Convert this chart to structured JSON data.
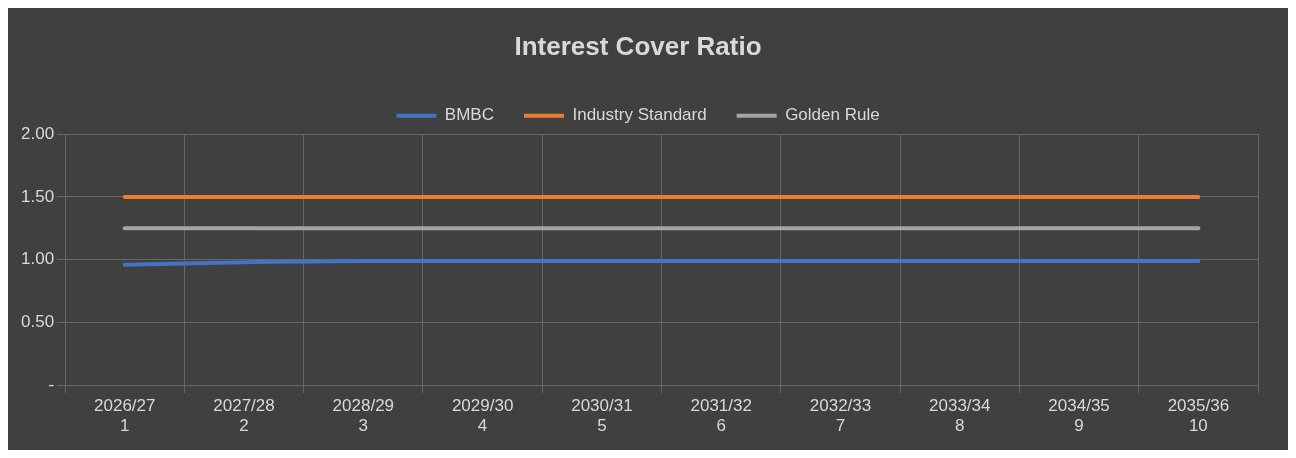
{
  "chart_data": {
    "type": "line",
    "title": "Interest Cover Ratio",
    "categories": [
      "2026/27\n1",
      "2027/28\n2",
      "2028/29\n3",
      "2029/30\n4",
      "2030/31\n5",
      "2031/32\n6",
      "2032/33\n7",
      "2033/34\n8",
      "2034/35\n9",
      "2035/36\n10"
    ],
    "series": [
      {
        "name": "BMBC",
        "color": "#4472c4",
        "values": [
          0.96,
          0.98,
          0.99,
          0.99,
          0.99,
          0.99,
          0.99,
          0.99,
          0.99,
          0.99
        ]
      },
      {
        "name": "Industry Standard",
        "color": "#ed7d31",
        "values": [
          1.5,
          1.5,
          1.5,
          1.5,
          1.5,
          1.5,
          1.5,
          1.5,
          1.5,
          1.5
        ]
      },
      {
        "name": "Golden Rule",
        "color": "#a5a5a5",
        "values": [
          1.25,
          1.25,
          1.25,
          1.25,
          1.25,
          1.25,
          1.25,
          1.25,
          1.25,
          1.25
        ]
      }
    ],
    "ylim": [
      0,
      2
    ],
    "yticks": [
      {
        "value": 0,
        "label": "-"
      },
      {
        "value": 0.5,
        "label": "0.50"
      },
      {
        "value": 1,
        "label": "1.00"
      },
      {
        "value": 1.5,
        "label": "1.50"
      },
      {
        "value": 2,
        "label": "2.00"
      }
    ],
    "grid": true,
    "legend": "top",
    "marker": "none",
    "line_style": "solid"
  }
}
